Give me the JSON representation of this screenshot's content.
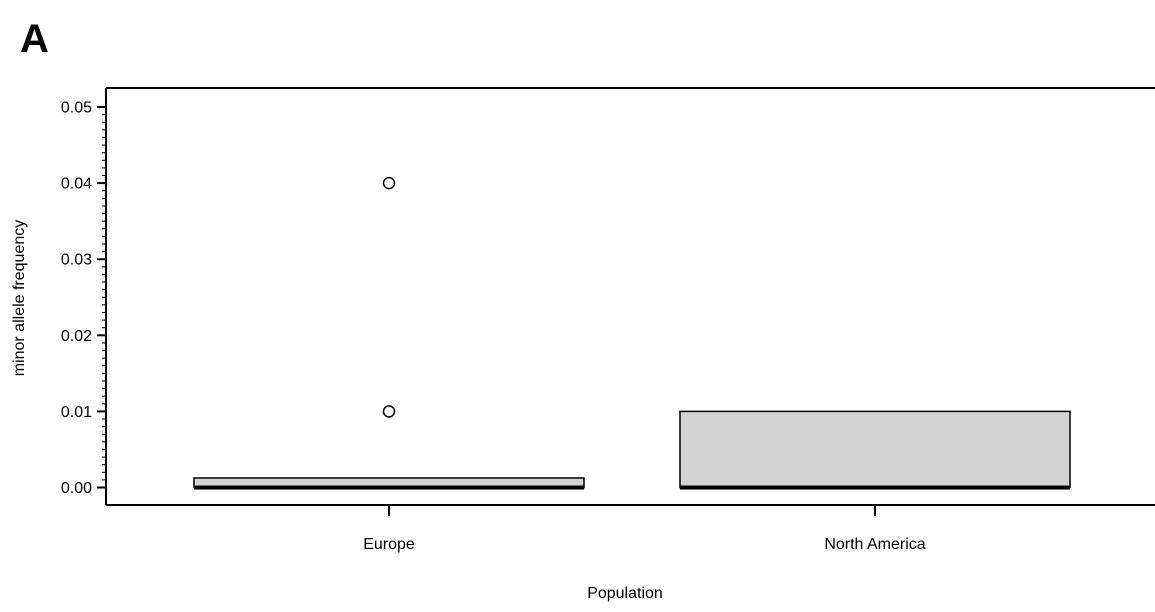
{
  "panel_label": "A",
  "chart_data": {
    "type": "boxplot",
    "title": "",
    "xlabel": "Population",
    "ylabel": "minor allele frequency",
    "ylim": [
      -0.0023,
      0.0525
    ],
    "yticks": [
      "0.00",
      "0.01",
      "0.02",
      "0.03",
      "0.04",
      "0.05"
    ],
    "yminor_step": 0.001,
    "categories": [
      "Europe",
      "North America"
    ],
    "boxes": [
      {
        "category": "Europe",
        "min": 0.0,
        "q1": 0.0,
        "median": 0.0,
        "q3": 0.00125,
        "max": 0.00125,
        "outliers": [
          0.01,
          0.04
        ]
      },
      {
        "category": "North America",
        "min": 0.0,
        "q1": 0.0,
        "median": 0.0,
        "q3": 0.01,
        "max": 0.01,
        "outliers": []
      }
    ],
    "box_fill": "#d3d3d3",
    "box_edge": "#000000"
  }
}
